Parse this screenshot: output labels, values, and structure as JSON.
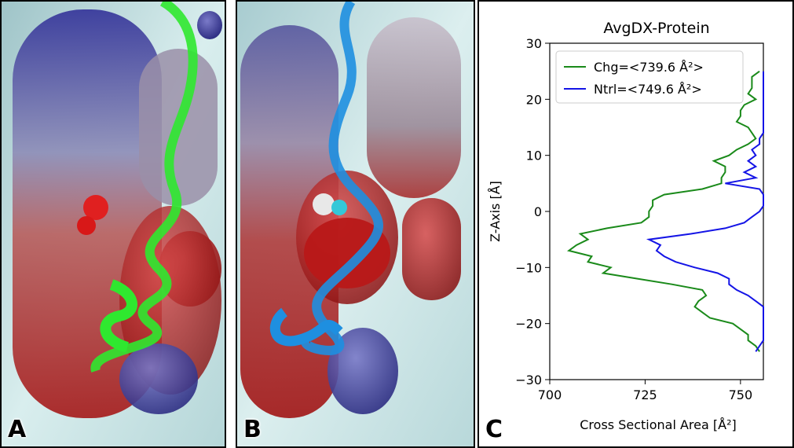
{
  "panels": {
    "a": {
      "letter": "A"
    },
    "b": {
      "letter": "B"
    },
    "c": {
      "letter": "C"
    }
  },
  "colors": {
    "ribbon_a": "#2fe82f",
    "ribbon_b": "#1e8fe0",
    "surface_red": "#b22020",
    "surface_blue": "#3c3ca8",
    "background_cyan": "#bfe4e6"
  },
  "chart_data": {
    "type": "line",
    "title": "AvgDX-Protein",
    "xlabel": "Cross Sectional Area [Å²]",
    "ylabel": "Z-Axis [Å]",
    "xlim": [
      700,
      756
    ],
    "ylim": [
      -30,
      30
    ],
    "xticks": [
      700,
      725,
      750
    ],
    "yticks": [
      -30,
      -20,
      -10,
      0,
      10,
      20,
      30
    ],
    "legend_placement": "top-left",
    "grid": false,
    "series": [
      {
        "name": "Chg=<739.6 Å²>",
        "color": "#1a8a1a",
        "points": [
          [
            755,
            25
          ],
          [
            753,
            24
          ],
          [
            753,
            22
          ],
          [
            752,
            21
          ],
          [
            754,
            20
          ],
          [
            751,
            19
          ],
          [
            750,
            18
          ],
          [
            750,
            17
          ],
          [
            749,
            16
          ],
          [
            752,
            15
          ],
          [
            753,
            14
          ],
          [
            754,
            13
          ],
          [
            752,
            12
          ],
          [
            749,
            11
          ],
          [
            747,
            10
          ],
          [
            743,
            9
          ],
          [
            746,
            8
          ],
          [
            746,
            7
          ],
          [
            745,
            6
          ],
          [
            745,
            5
          ],
          [
            740,
            4
          ],
          [
            730,
            3
          ],
          [
            727,
            2
          ],
          [
            727,
            1
          ],
          [
            726,
            0
          ],
          [
            726,
            -1
          ],
          [
            724,
            -2
          ],
          [
            715,
            -3
          ],
          [
            708,
            -4
          ],
          [
            710,
            -5
          ],
          [
            707,
            -6
          ],
          [
            705,
            -7
          ],
          [
            711,
            -8
          ],
          [
            710,
            -9
          ],
          [
            716,
            -10
          ],
          [
            714,
            -11
          ],
          [
            723,
            -12
          ],
          [
            732,
            -13
          ],
          [
            740,
            -14
          ],
          [
            741,
            -15
          ],
          [
            739,
            -16
          ],
          [
            738,
            -17
          ],
          [
            740,
            -18
          ],
          [
            742,
            -19
          ],
          [
            748,
            -20
          ],
          [
            750,
            -21
          ],
          [
            752,
            -22
          ],
          [
            752,
            -23
          ],
          [
            754,
            -24
          ],
          [
            755,
            -25
          ]
        ]
      },
      {
        "name": "Ntrl=<749.6 Å²>",
        "color": "#1414e6",
        "points": [
          [
            756,
            25
          ],
          [
            756,
            22
          ],
          [
            756,
            20
          ],
          [
            756,
            18
          ],
          [
            756,
            16
          ],
          [
            756,
            14
          ],
          [
            755,
            13
          ],
          [
            755,
            12
          ],
          [
            753,
            11
          ],
          [
            754,
            10
          ],
          [
            752,
            9
          ],
          [
            754,
            8
          ],
          [
            751,
            7
          ],
          [
            754,
            6
          ],
          [
            746,
            5
          ],
          [
            755,
            4
          ],
          [
            756,
            3
          ],
          [
            756,
            2
          ],
          [
            756,
            1
          ],
          [
            755,
            0
          ],
          [
            753,
            -1
          ],
          [
            751,
            -2
          ],
          [
            746,
            -3
          ],
          [
            737,
            -4
          ],
          [
            726,
            -5
          ],
          [
            729,
            -6
          ],
          [
            728,
            -7
          ],
          [
            730,
            -8
          ],
          [
            733,
            -9
          ],
          [
            738,
            -10
          ],
          [
            744,
            -11
          ],
          [
            747,
            -12
          ],
          [
            747,
            -13
          ],
          [
            749,
            -14
          ],
          [
            752,
            -15
          ],
          [
            754,
            -16
          ],
          [
            756,
            -17
          ],
          [
            756,
            -20
          ],
          [
            756,
            -22
          ],
          [
            756,
            -23
          ],
          [
            755,
            -24
          ],
          [
            754,
            -25
          ]
        ]
      }
    ]
  }
}
